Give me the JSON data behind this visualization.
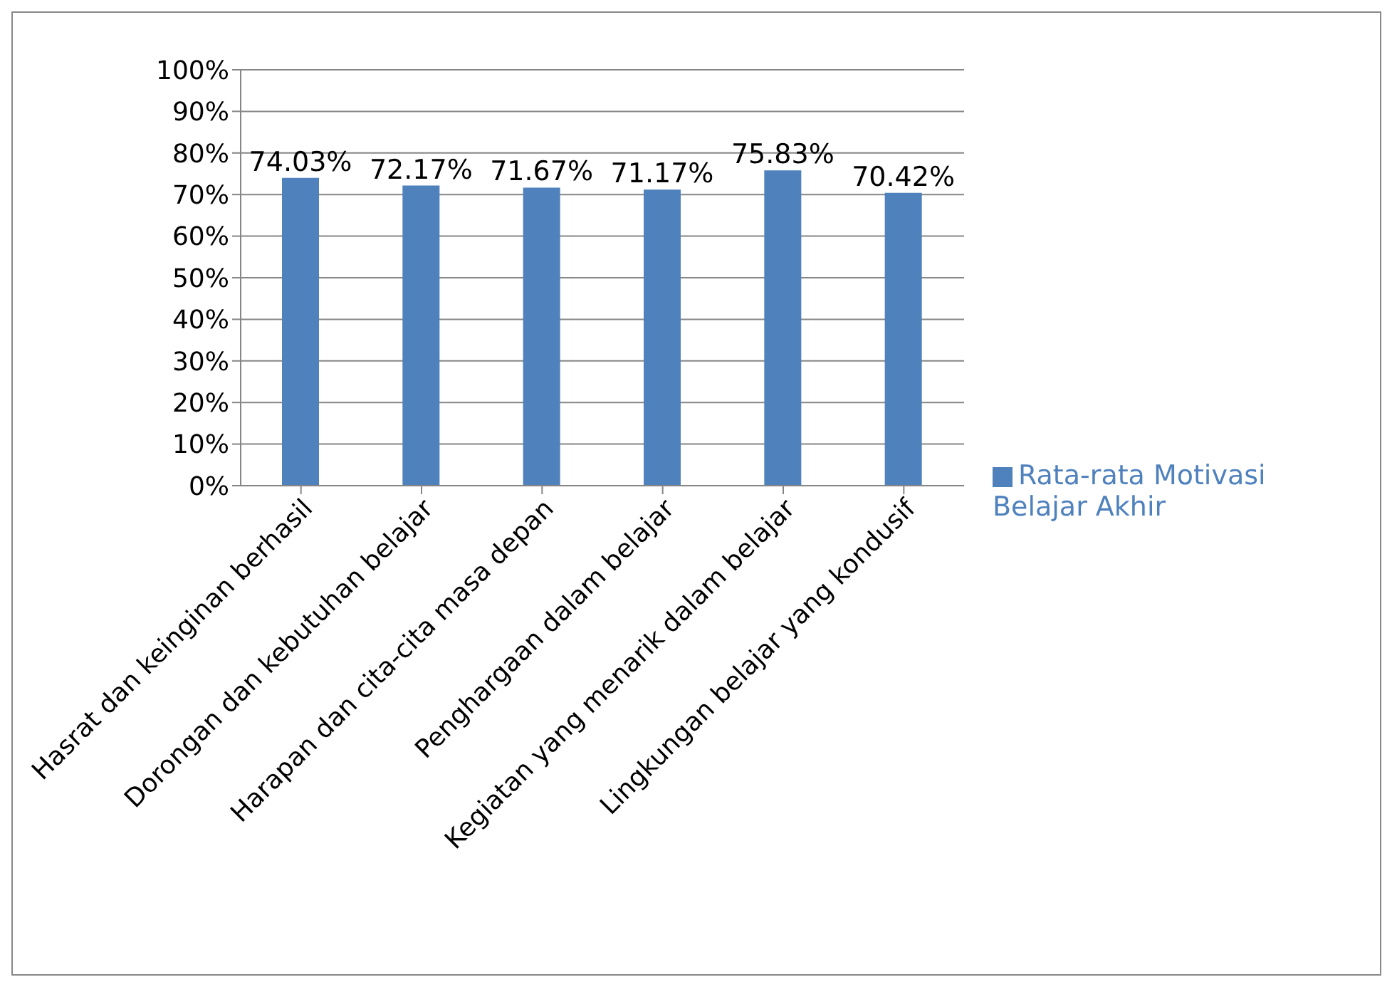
{
  "chart_data": {
    "type": "bar",
    "categories": [
      "Hasrat dan keinginan berhasil",
      "Dorongan dan kebutuhan belajar",
      "Harapan dan cita-cita masa depan",
      "Penghargaan dalam belajar",
      "Kegiatan yang menarik dalam belajar",
      "Lingkungan belajar yang kondusif"
    ],
    "series": [
      {
        "name": "Rata-rata Motivasi Belajar Akhir",
        "color": "#4f81bd",
        "values": [
          74.03,
          72.17,
          71.67,
          71.17,
          75.83,
          70.42
        ],
        "value_labels": [
          "74.03%",
          "72.17%",
          "71.67%",
          "71.17%",
          "75.83%",
          "70.42%"
        ]
      }
    ],
    "ylim": [
      0,
      100
    ],
    "yticks": [
      {
        "value": 0,
        "label": "0%"
      },
      {
        "value": 10,
        "label": "10%"
      },
      {
        "value": 20,
        "label": "20%"
      },
      {
        "value": 30,
        "label": "30%"
      },
      {
        "value": 40,
        "label": "40%"
      },
      {
        "value": 50,
        "label": "50%"
      },
      {
        "value": 60,
        "label": "60%"
      },
      {
        "value": 70,
        "label": "70%"
      },
      {
        "value": 80,
        "label": "80%"
      },
      {
        "value": 90,
        "label": "90%"
      },
      {
        "value": 100,
        "label": "100%"
      }
    ],
    "grid": "y",
    "legend": "right"
  }
}
